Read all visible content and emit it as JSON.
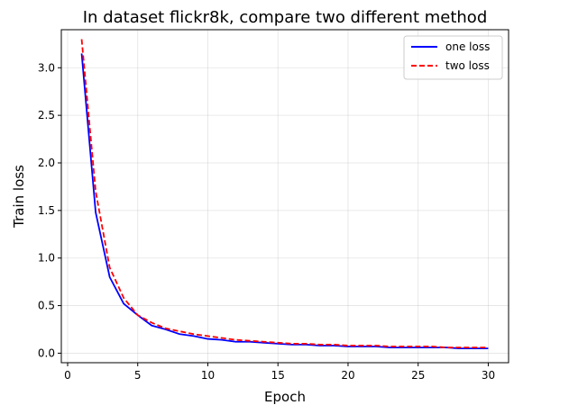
{
  "chart_data": {
    "type": "line",
    "title": "In dataset flickr8k, compare two different method",
    "xlabel": "Epoch",
    "ylabel": "Train loss",
    "xlim": [
      -0.45,
      31.45
    ],
    "ylim": [
      -0.1,
      3.4
    ],
    "xticks": [
      0,
      5,
      10,
      15,
      20,
      25,
      30
    ],
    "yticks": [
      0.0,
      0.5,
      1.0,
      1.5,
      2.0,
      2.5,
      3.0
    ],
    "xtick_labels": [
      "0",
      "5",
      "10",
      "15",
      "20",
      "25",
      "30"
    ],
    "ytick_labels": [
      "0.0",
      "0.5",
      "1.0",
      "1.5",
      "2.0",
      "2.5",
      "3.0"
    ],
    "grid": true,
    "legend_position": "top-right",
    "x": [
      1,
      2,
      3,
      4,
      5,
      6,
      7,
      8,
      9,
      10,
      11,
      12,
      13,
      14,
      15,
      16,
      17,
      18,
      19,
      20,
      21,
      22,
      23,
      24,
      25,
      26,
      27,
      28,
      29,
      30
    ],
    "series": [
      {
        "name": "one loss",
        "color": "#0000ff",
        "style": "solid",
        "values": [
          3.15,
          1.48,
          0.8,
          0.52,
          0.4,
          0.29,
          0.25,
          0.2,
          0.18,
          0.15,
          0.14,
          0.12,
          0.12,
          0.11,
          0.1,
          0.09,
          0.09,
          0.08,
          0.08,
          0.07,
          0.07,
          0.07,
          0.06,
          0.06,
          0.06,
          0.06,
          0.06,
          0.05,
          0.05,
          0.05
        ]
      },
      {
        "name": "two loss",
        "color": "#ff0000",
        "style": "dashed",
        "values": [
          3.3,
          1.7,
          0.9,
          0.58,
          0.4,
          0.32,
          0.26,
          0.23,
          0.2,
          0.18,
          0.16,
          0.14,
          0.13,
          0.12,
          0.11,
          0.1,
          0.1,
          0.09,
          0.09,
          0.08,
          0.08,
          0.08,
          0.07,
          0.07,
          0.07,
          0.07,
          0.06,
          0.06,
          0.06,
          0.06
        ]
      }
    ]
  }
}
